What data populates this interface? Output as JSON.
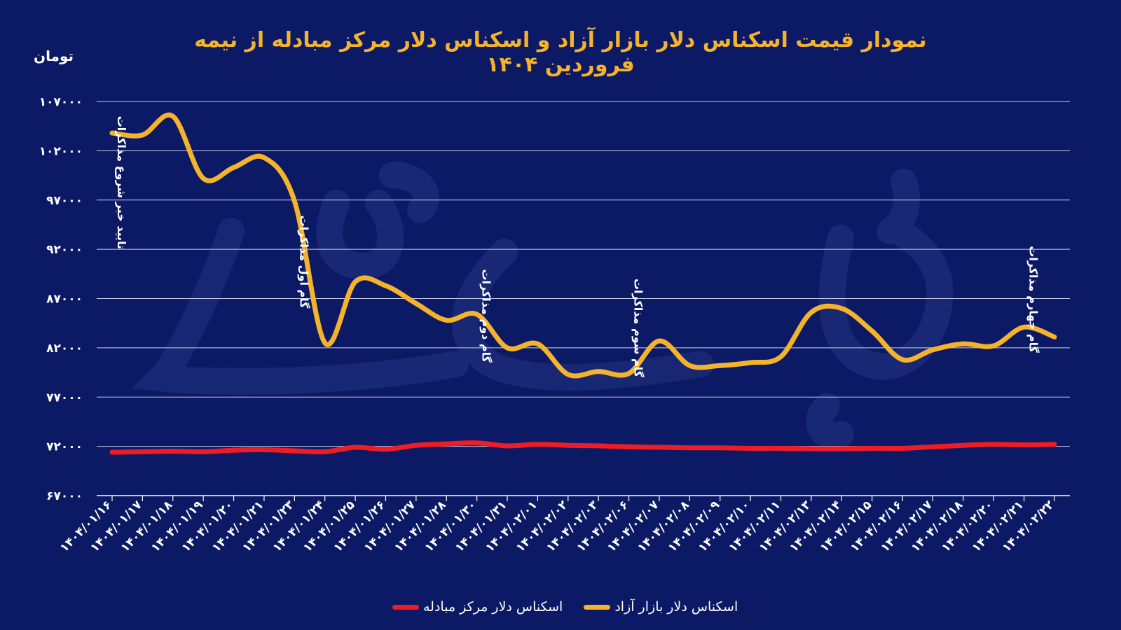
{
  "chart_data": {
    "type": "line",
    "title": "نمودار قیمت اسکناس دلار بازار آزاد و اسکناس دلار مرکز مبادله از نیمه فروردین ۱۴۰۴",
    "ylabel": "تومان",
    "ylim": [
      67000,
      107000
    ],
    "yticks": [
      67000,
      72000,
      77000,
      82000,
      87000,
      92000,
      97000,
      102000,
      107000
    ],
    "ytick_labels": [
      "۶۷۰۰۰",
      "۷۲۰۰۰",
      "۷۷۰۰۰",
      "۸۲۰۰۰",
      "۸۷۰۰۰",
      "۹۲۰۰۰",
      "۹۷۰۰۰",
      "۱۰۲۰۰۰",
      "۱۰۷۰۰۰"
    ],
    "grid": true,
    "legend_position": "bottom-center",
    "categories": [
      "۱۴۰۴/۰۱/۱۶",
      "۱۴۰۴/۰۱/۱۷",
      "۱۴۰۴/۰۱/۱۸",
      "۱۴۰۴/۰۱/۱۹",
      "۱۴۰۴/۰۱/۲۰",
      "۱۴۰۴/۰۱/۲۱",
      "۱۴۰۴/۰۱/۲۳",
      "۱۴۰۴/۰۱/۲۴",
      "۱۴۰۴/۰۱/۲۵",
      "۱۴۰۴/۰۱/۲۶",
      "۱۴۰۴/۰۱/۲۷",
      "۱۴۰۴/۰۱/۲۸",
      "۱۴۰۴/۰۱/۳۰",
      "۱۴۰۴/۰۱/۳۱",
      "۱۴۰۴/۰۲/۰۱",
      "۱۴۰۴/۰۲/۰۲",
      "۱۴۰۴/۰۲/۰۳",
      "۱۴۰۴/۰۲/۰۶",
      "۱۴۰۴/۰۲/۰۷",
      "۱۴۰۴/۰۲/۰۸",
      "۱۴۰۴/۰۲/۰۹",
      "۱۴۰۴/۰۲/۱۰",
      "۱۴۰۴/۰۲/۱۱",
      "۱۴۰۴/۰۲/۱۳",
      "۱۴۰۴/۰۲/۱۴",
      "۱۴۰۴/۰۲/۱۵",
      "۱۴۰۴/۰۲/۱۶",
      "۱۴۰۴/۰۲/۱۷",
      "۱۴۰۴/۰۲/۱۸",
      "۱۴۰۴/۰۲/۲۰",
      "۱۴۰۴/۰۲/۲۱",
      "۱۴۰۴/۰۲/۲۲"
    ],
    "series": [
      {
        "name": "اسکناس دلار بازار آزاد",
        "color": "#f5b32c",
        "values": [
          103800,
          103600,
          105500,
          99200,
          100300,
          101300,
          96900,
          82500,
          88700,
          88300,
          86500,
          84800,
          85400,
          82000,
          82400,
          79300,
          79600,
          79400,
          82700,
          80200,
          80200,
          80500,
          81100,
          85600,
          86000,
          83700,
          80800,
          81800,
          82400,
          82200,
          84100,
          83100
        ]
      },
      {
        "name": "اسکناس دلار مرکز مبادله",
        "color": "#ee1c25",
        "values": [
          71400,
          71450,
          71500,
          71450,
          71600,
          71650,
          71550,
          71450,
          71900,
          71700,
          72100,
          72250,
          72350,
          72050,
          72200,
          72100,
          72050,
          71950,
          71900,
          71850,
          71850,
          71800,
          71800,
          71750,
          71750,
          71800,
          71800,
          71950,
          72100,
          72200,
          72150,
          72200
        ]
      }
    ],
    "annotations": [
      {
        "text": "تایید خبر شروع مذاکرات",
        "category_index": 0,
        "y": 92000
      },
      {
        "text": "گام اول مذاکرات",
        "category_index": 6,
        "y": 86000
      },
      {
        "text": "گام دوم مذاکرات",
        "category_index": 12,
        "y": 80500
      },
      {
        "text": "گام سوم مذاکرات",
        "category_index": 17,
        "y": 79000
      },
      {
        "text": "گام چهارم مذاکرات",
        "category_index": 30,
        "y": 81500
      }
    ]
  }
}
